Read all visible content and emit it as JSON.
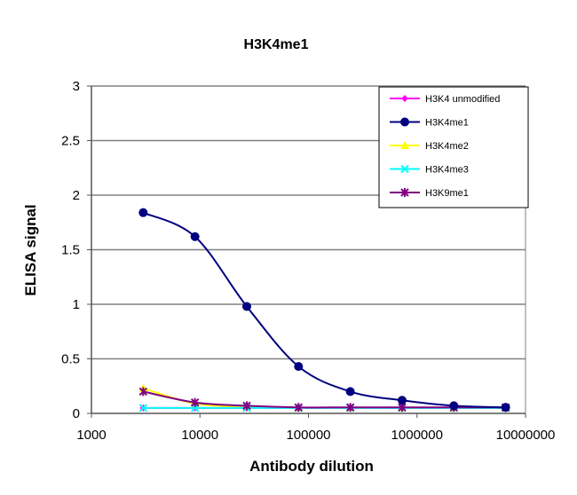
{
  "chart_data": {
    "type": "line",
    "title": "H3K4me1",
    "xlabel": "Antibody dilution",
    "ylabel": "ELISA signal",
    "xscale": "log",
    "xlim": [
      1000,
      10000000
    ],
    "ylim": [
      0,
      3
    ],
    "x_ticks": [
      "1000",
      "10000",
      "100000",
      "1000000",
      "10000000"
    ],
    "y_ticks": [
      "0",
      "0.5",
      "1",
      "1.5",
      "2",
      "2.5",
      "3"
    ],
    "grid": "horizontal",
    "legend_position": "top-right",
    "x": [
      3000,
      9000,
      27000,
      81000,
      243000,
      729000,
      2187000,
      6561000
    ],
    "series": [
      {
        "name": "H3K4 unmodified",
        "color": "#ff00ff",
        "marker": "diamond",
        "values": [
          0.05,
          0.05,
          0.05,
          0.05,
          0.05,
          0.05,
          0.05,
          0.05
        ]
      },
      {
        "name": "H3K4me1",
        "color": "#000080",
        "marker": "circle",
        "values": [
          1.84,
          1.62,
          0.98,
          0.43,
          0.2,
          0.12,
          0.07,
          0.055
        ]
      },
      {
        "name": "H3K4me2",
        "color": "#ffff00",
        "marker": "triangle",
        "values": [
          0.23,
          0.09,
          0.06,
          0.05,
          0.05,
          0.05,
          0.05,
          0.05
        ]
      },
      {
        "name": "H3K4me3",
        "color": "#00ffff",
        "marker": "x",
        "values": [
          0.05,
          0.05,
          0.05,
          0.05,
          0.05,
          0.05,
          0.05,
          0.05
        ]
      },
      {
        "name": "H3K9me1",
        "color": "#800080",
        "marker": "star",
        "values": [
          0.2,
          0.1,
          0.07,
          0.055,
          0.055,
          0.055,
          0.055,
          0.055
        ]
      }
    ]
  }
}
